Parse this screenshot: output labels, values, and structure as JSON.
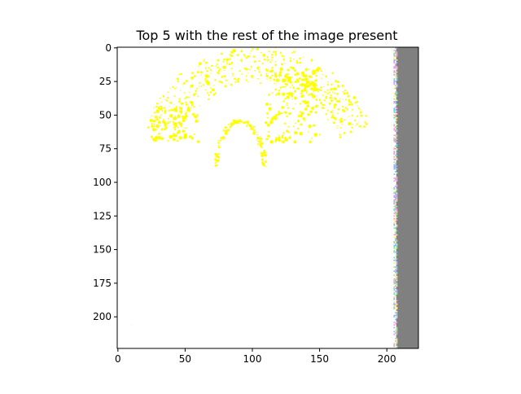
{
  "chart_data": {
    "type": "image",
    "title": "Top 5 with the rest of the image present",
    "xlabel": "",
    "ylabel": "",
    "xlim": [
      -0.5,
      223.5
    ],
    "ylim": [
      223.5,
      -0.5
    ],
    "y_inverted": true,
    "grid": false,
    "xticks": [
      0,
      50,
      100,
      150,
      200
    ],
    "yticks": [
      0,
      25,
      50,
      75,
      100,
      125,
      150,
      175,
      200
    ],
    "x_tick_labels": [
      "0",
      "50",
      "100",
      "150",
      "200"
    ],
    "y_tick_labels": [
      "0",
      "25",
      "50",
      "75",
      "100",
      "125",
      "150",
      "175",
      "200"
    ],
    "image_content": {
      "background_color": "#ffffff",
      "highlight_color": "#ffff00",
      "outer_arch": {
        "center_x": 104,
        "center_y": 92,
        "radius_x": 90,
        "radius_y": 92
      },
      "inner_arch": {
        "center_x": 91,
        "center_y": 90,
        "radius_x": 18,
        "radius_y": 35
      },
      "gray_band": {
        "x_start": 207,
        "x_end": 223.5,
        "color": "#808080"
      },
      "noise_strip": {
        "x_start": 205,
        "x_end": 208,
        "colors": [
          "#66ccff",
          "#88ee88",
          "#ff99cc",
          "#cc99ff",
          "#ffee66"
        ]
      }
    }
  }
}
